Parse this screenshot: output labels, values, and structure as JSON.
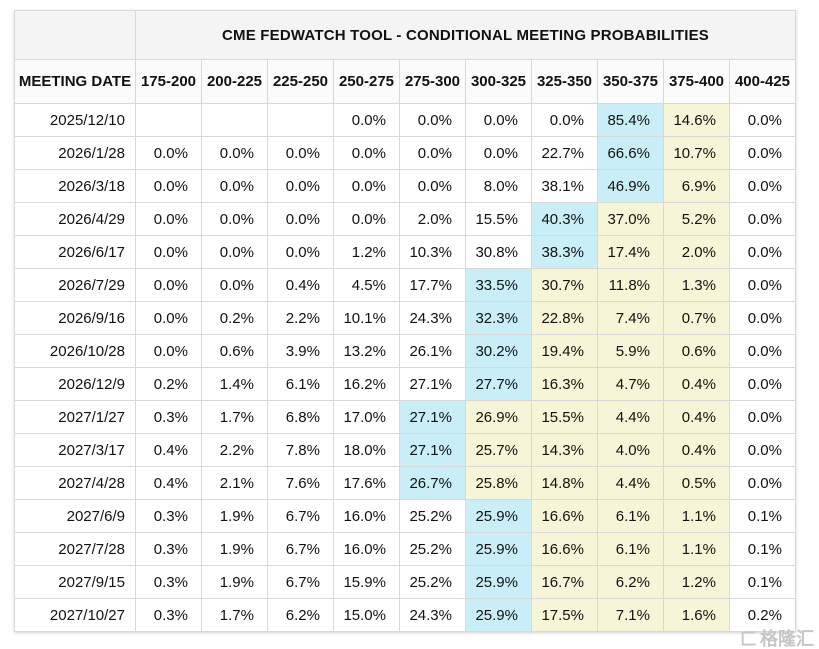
{
  "chart_data": {
    "type": "table",
    "title": "CME FEDWATCH TOOL - CONDITIONAL MEETING PROBABILITIES",
    "columns": [
      "MEETING DATE",
      "175-200",
      "200-225",
      "225-250",
      "250-275",
      "275-300",
      "300-325",
      "325-350",
      "350-375",
      "375-400",
      "400-425"
    ],
    "rows": [
      {
        "date": "2025/12/10",
        "values": [
          "",
          "",
          "",
          "0.0%",
          "0.0%",
          "0.0%",
          "0.0%",
          "85.4%",
          "14.6%",
          "0.0%"
        ],
        "highlights": [
          "",
          "",
          "",
          "",
          "",
          "",
          "",
          "blue",
          "yellow",
          ""
        ]
      },
      {
        "date": "2026/1/28",
        "values": [
          "0.0%",
          "0.0%",
          "0.0%",
          "0.0%",
          "0.0%",
          "0.0%",
          "22.7%",
          "66.6%",
          "10.7%",
          "0.0%"
        ],
        "highlights": [
          "",
          "",
          "",
          "",
          "",
          "",
          "",
          "blue",
          "yellow",
          ""
        ]
      },
      {
        "date": "2026/3/18",
        "values": [
          "0.0%",
          "0.0%",
          "0.0%",
          "0.0%",
          "0.0%",
          "8.0%",
          "38.1%",
          "46.9%",
          "6.9%",
          "0.0%"
        ],
        "highlights": [
          "",
          "",
          "",
          "",
          "",
          "",
          "",
          "blue",
          "yellow",
          ""
        ]
      },
      {
        "date": "2026/4/29",
        "values": [
          "0.0%",
          "0.0%",
          "0.0%",
          "0.0%",
          "2.0%",
          "15.5%",
          "40.3%",
          "37.0%",
          "5.2%",
          "0.0%"
        ],
        "highlights": [
          "",
          "",
          "",
          "",
          "",
          "",
          "blue",
          "yellow",
          "yellow",
          ""
        ]
      },
      {
        "date": "2026/6/17",
        "values": [
          "0.0%",
          "0.0%",
          "0.0%",
          "1.2%",
          "10.3%",
          "30.8%",
          "38.3%",
          "17.4%",
          "2.0%",
          "0.0%"
        ],
        "highlights": [
          "",
          "",
          "",
          "",
          "",
          "",
          "blue",
          "yellow",
          "yellow",
          ""
        ]
      },
      {
        "date": "2026/7/29",
        "values": [
          "0.0%",
          "0.0%",
          "0.4%",
          "4.5%",
          "17.7%",
          "33.5%",
          "30.7%",
          "11.8%",
          "1.3%",
          "0.0%"
        ],
        "highlights": [
          "",
          "",
          "",
          "",
          "",
          "blue",
          "yellow",
          "yellow",
          "yellow",
          ""
        ]
      },
      {
        "date": "2026/9/16",
        "values": [
          "0.0%",
          "0.2%",
          "2.2%",
          "10.1%",
          "24.3%",
          "32.3%",
          "22.8%",
          "7.4%",
          "0.7%",
          "0.0%"
        ],
        "highlights": [
          "",
          "",
          "",
          "",
          "",
          "blue",
          "yellow",
          "yellow",
          "yellow",
          ""
        ]
      },
      {
        "date": "2026/10/28",
        "values": [
          "0.0%",
          "0.6%",
          "3.9%",
          "13.2%",
          "26.1%",
          "30.2%",
          "19.4%",
          "5.9%",
          "0.6%",
          "0.0%"
        ],
        "highlights": [
          "",
          "",
          "",
          "",
          "",
          "blue",
          "yellow",
          "yellow",
          "yellow",
          ""
        ]
      },
      {
        "date": "2026/12/9",
        "values": [
          "0.2%",
          "1.4%",
          "6.1%",
          "16.2%",
          "27.1%",
          "27.7%",
          "16.3%",
          "4.7%",
          "0.4%",
          "0.0%"
        ],
        "highlights": [
          "",
          "",
          "",
          "",
          "",
          "blue",
          "yellow",
          "yellow",
          "yellow",
          ""
        ]
      },
      {
        "date": "2027/1/27",
        "values": [
          "0.3%",
          "1.7%",
          "6.8%",
          "17.0%",
          "27.1%",
          "26.9%",
          "15.5%",
          "4.4%",
          "0.4%",
          "0.0%"
        ],
        "highlights": [
          "",
          "",
          "",
          "",
          "blue",
          "yellow",
          "yellow",
          "yellow",
          "yellow",
          ""
        ]
      },
      {
        "date": "2027/3/17",
        "values": [
          "0.4%",
          "2.2%",
          "7.8%",
          "18.0%",
          "27.1%",
          "25.7%",
          "14.3%",
          "4.0%",
          "0.4%",
          "0.0%"
        ],
        "highlights": [
          "",
          "",
          "",
          "",
          "blue",
          "yellow",
          "yellow",
          "yellow",
          "yellow",
          ""
        ]
      },
      {
        "date": "2027/4/28",
        "values": [
          "0.4%",
          "2.1%",
          "7.6%",
          "17.6%",
          "26.7%",
          "25.8%",
          "14.8%",
          "4.4%",
          "0.5%",
          "0.0%"
        ],
        "highlights": [
          "",
          "",
          "",
          "",
          "blue",
          "yellow",
          "yellow",
          "yellow",
          "yellow",
          ""
        ]
      },
      {
        "date": "2027/6/9",
        "values": [
          "0.3%",
          "1.9%",
          "6.7%",
          "16.0%",
          "25.2%",
          "25.9%",
          "16.6%",
          "6.1%",
          "1.1%",
          "0.1%"
        ],
        "highlights": [
          "",
          "",
          "",
          "",
          "",
          "blue",
          "yellow",
          "yellow",
          "yellow",
          ""
        ]
      },
      {
        "date": "2027/7/28",
        "values": [
          "0.3%",
          "1.9%",
          "6.7%",
          "16.0%",
          "25.2%",
          "25.9%",
          "16.6%",
          "6.1%",
          "1.1%",
          "0.1%"
        ],
        "highlights": [
          "",
          "",
          "",
          "",
          "",
          "blue",
          "yellow",
          "yellow",
          "yellow",
          ""
        ]
      },
      {
        "date": "2027/9/15",
        "values": [
          "0.3%",
          "1.9%",
          "6.7%",
          "15.9%",
          "25.2%",
          "25.9%",
          "16.7%",
          "6.2%",
          "1.2%",
          "0.1%"
        ],
        "highlights": [
          "",
          "",
          "",
          "",
          "",
          "blue",
          "yellow",
          "yellow",
          "yellow",
          ""
        ]
      },
      {
        "date": "2027/10/27",
        "values": [
          "0.3%",
          "1.7%",
          "6.2%",
          "15.0%",
          "24.3%",
          "25.9%",
          "17.5%",
          "7.1%",
          "1.6%",
          "0.2%"
        ],
        "highlights": [
          "",
          "",
          "",
          "",
          "",
          "blue",
          "yellow",
          "yellow",
          "yellow",
          ""
        ]
      }
    ]
  },
  "colors": {
    "highlight_blue": "#c9eef7",
    "highlight_yellow": "#f7f5d8",
    "header_bg": "#f4f4f4",
    "border": "#d8d8d8"
  },
  "watermark": {
    "logo": "匚",
    "text": "格隆汇"
  }
}
